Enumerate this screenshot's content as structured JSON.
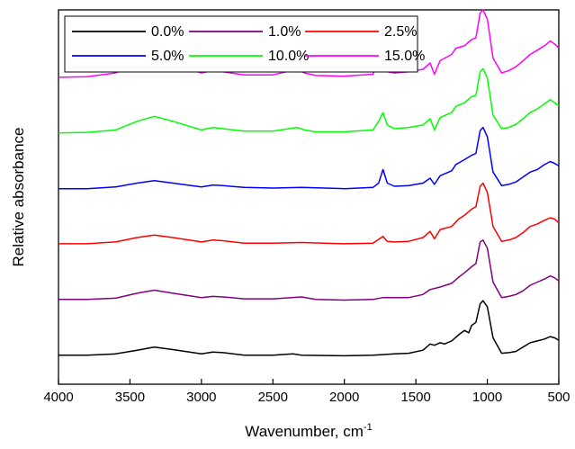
{
  "chart_data": {
    "type": "line",
    "title": "",
    "xlabel": "Wavenumber, cm",
    "xlabel_sup": "-1",
    "ylabel": "Relative absorbance",
    "xlim": [
      4000,
      500
    ],
    "x_reversed": true,
    "xticks": [
      4000,
      3500,
      3000,
      2500,
      2000,
      1500,
      1000,
      500
    ],
    "yticks": "none",
    "grid": false,
    "legend": {
      "position": "top",
      "columns": 3
    },
    "y_units": "arbitrary (stacked with vertical offsets)",
    "series": [
      {
        "name": "0.0%",
        "color": "#000000",
        "offset": 0.0,
        "points": [
          [
            4000,
            0.02
          ],
          [
            3800,
            0.02
          ],
          [
            3600,
            0.04
          ],
          [
            3450,
            0.1
          ],
          [
            3330,
            0.15
          ],
          [
            3200,
            0.11
          ],
          [
            3000,
            0.04
          ],
          [
            2920,
            0.07
          ],
          [
            2850,
            0.06
          ],
          [
            2700,
            0.02
          ],
          [
            2500,
            0.02
          ],
          [
            2360,
            0.04
          ],
          [
            2300,
            0.02
          ],
          [
            2000,
            0.01
          ],
          [
            1800,
            0.02
          ],
          [
            1720,
            0.03
          ],
          [
            1650,
            0.04
          ],
          [
            1550,
            0.05
          ],
          [
            1450,
            0.1
          ],
          [
            1400,
            0.2
          ],
          [
            1370,
            0.18
          ],
          [
            1330,
            0.22
          ],
          [
            1300,
            0.2
          ],
          [
            1250,
            0.25
          ],
          [
            1200,
            0.35
          ],
          [
            1160,
            0.42
          ],
          [
            1130,
            0.38
          ],
          [
            1110,
            0.5
          ],
          [
            1080,
            0.55
          ],
          [
            1050,
            0.85
          ],
          [
            1030,
            0.9
          ],
          [
            1000,
            0.8
          ],
          [
            960,
            0.3
          ],
          [
            900,
            0.05
          ],
          [
            850,
            0.06
          ],
          [
            800,
            0.08
          ],
          [
            750,
            0.15
          ],
          [
            700,
            0.22
          ],
          [
            650,
            0.25
          ],
          [
            600,
            0.28
          ],
          [
            560,
            0.32
          ],
          [
            530,
            0.3
          ],
          [
            500,
            0.26
          ]
        ]
      },
      {
        "name": "1.0%",
        "color": "#800080",
        "offset": 0.9,
        "points": [
          [
            4000,
            0.02
          ],
          [
            3800,
            0.02
          ],
          [
            3600,
            0.04
          ],
          [
            3450,
            0.12
          ],
          [
            3330,
            0.17
          ],
          [
            3200,
            0.12
          ],
          [
            3000,
            0.05
          ],
          [
            2920,
            0.07
          ],
          [
            2850,
            0.06
          ],
          [
            2700,
            0.03
          ],
          [
            2500,
            0.03
          ],
          [
            2300,
            0.06
          ],
          [
            2200,
            0.02
          ],
          [
            2000,
            0.01
          ],
          [
            1800,
            0.02
          ],
          [
            1730,
            0.05
          ],
          [
            1650,
            0.05
          ],
          [
            1550,
            0.05
          ],
          [
            1450,
            0.1
          ],
          [
            1400,
            0.18
          ],
          [
            1330,
            0.22
          ],
          [
            1250,
            0.28
          ],
          [
            1200,
            0.38
          ],
          [
            1160,
            0.45
          ],
          [
            1110,
            0.55
          ],
          [
            1080,
            0.6
          ],
          [
            1050,
            0.95
          ],
          [
            1030,
            0.98
          ],
          [
            1000,
            0.85
          ],
          [
            960,
            0.3
          ],
          [
            900,
            0.05
          ],
          [
            850,
            0.07
          ],
          [
            800,
            0.1
          ],
          [
            750,
            0.16
          ],
          [
            700,
            0.25
          ],
          [
            650,
            0.3
          ],
          [
            600,
            0.35
          ],
          [
            560,
            0.4
          ],
          [
            530,
            0.37
          ],
          [
            500,
            0.32
          ]
        ]
      },
      {
        "name": "2.5%",
        "color": "#ff0000",
        "offset": 1.8,
        "points": [
          [
            4000,
            0.02
          ],
          [
            3800,
            0.02
          ],
          [
            3600,
            0.05
          ],
          [
            3450,
            0.12
          ],
          [
            3330,
            0.16
          ],
          [
            3200,
            0.12
          ],
          [
            3000,
            0.05
          ],
          [
            2920,
            0.08
          ],
          [
            2850,
            0.07
          ],
          [
            2700,
            0.03
          ],
          [
            2500,
            0.03
          ],
          [
            2300,
            0.04
          ],
          [
            2000,
            0.02
          ],
          [
            1800,
            0.03
          ],
          [
            1730,
            0.14
          ],
          [
            1700,
            0.06
          ],
          [
            1650,
            0.05
          ],
          [
            1550,
            0.06
          ],
          [
            1450,
            0.12
          ],
          [
            1400,
            0.22
          ],
          [
            1370,
            0.1
          ],
          [
            1330,
            0.25
          ],
          [
            1250,
            0.3
          ],
          [
            1200,
            0.42
          ],
          [
            1160,
            0.48
          ],
          [
            1110,
            0.58
          ],
          [
            1080,
            0.62
          ],
          [
            1050,
            0.95
          ],
          [
            1030,
            1.0
          ],
          [
            1000,
            0.85
          ],
          [
            960,
            0.3
          ],
          [
            900,
            0.06
          ],
          [
            850,
            0.08
          ],
          [
            800,
            0.12
          ],
          [
            750,
            0.2
          ],
          [
            700,
            0.3
          ],
          [
            650,
            0.34
          ],
          [
            600,
            0.4
          ],
          [
            560,
            0.44
          ],
          [
            530,
            0.42
          ],
          [
            500,
            0.36
          ]
        ]
      },
      {
        "name": "5.0%",
        "color": "#0000ff",
        "offset": 2.7,
        "points": [
          [
            4000,
            0.01
          ],
          [
            3800,
            0.01
          ],
          [
            3600,
            0.04
          ],
          [
            3450,
            0.1
          ],
          [
            3330,
            0.14
          ],
          [
            3200,
            0.1
          ],
          [
            3000,
            0.04
          ],
          [
            2920,
            0.07
          ],
          [
            2850,
            0.06
          ],
          [
            2700,
            0.03
          ],
          [
            2500,
            0.02
          ],
          [
            2300,
            0.03
          ],
          [
            2000,
            0.01
          ],
          [
            1800,
            0.03
          ],
          [
            1760,
            0.1
          ],
          [
            1730,
            0.32
          ],
          [
            1700,
            0.1
          ],
          [
            1650,
            0.05
          ],
          [
            1550,
            0.06
          ],
          [
            1450,
            0.1
          ],
          [
            1400,
            0.18
          ],
          [
            1370,
            0.08
          ],
          [
            1330,
            0.22
          ],
          [
            1250,
            0.3
          ],
          [
            1220,
            0.4
          ],
          [
            1160,
            0.48
          ],
          [
            1110,
            0.55
          ],
          [
            1080,
            0.58
          ],
          [
            1050,
            0.95
          ],
          [
            1030,
            1.0
          ],
          [
            1000,
            0.85
          ],
          [
            960,
            0.28
          ],
          [
            900,
            0.06
          ],
          [
            850,
            0.08
          ],
          [
            800,
            0.12
          ],
          [
            750,
            0.2
          ],
          [
            700,
            0.28
          ],
          [
            650,
            0.32
          ],
          [
            600,
            0.4
          ],
          [
            560,
            0.45
          ],
          [
            530,
            0.42
          ],
          [
            500,
            0.38
          ]
        ]
      },
      {
        "name": "10.0%",
        "color": "#00ff00",
        "offset": 3.6,
        "points": [
          [
            4000,
            0.01
          ],
          [
            3800,
            0.02
          ],
          [
            3600,
            0.06
          ],
          [
            3450,
            0.2
          ],
          [
            3330,
            0.28
          ],
          [
            3200,
            0.2
          ],
          [
            3000,
            0.06
          ],
          [
            2920,
            0.1
          ],
          [
            2850,
            0.08
          ],
          [
            2700,
            0.04
          ],
          [
            2500,
            0.04
          ],
          [
            2330,
            0.1
          ],
          [
            2280,
            0.06
          ],
          [
            2200,
            0.03
          ],
          [
            2000,
            0.03
          ],
          [
            1800,
            0.06
          ],
          [
            1760,
            0.2
          ],
          [
            1730,
            0.34
          ],
          [
            1700,
            0.14
          ],
          [
            1650,
            0.08
          ],
          [
            1550,
            0.1
          ],
          [
            1450,
            0.14
          ],
          [
            1400,
            0.24
          ],
          [
            1370,
            0.06
          ],
          [
            1330,
            0.26
          ],
          [
            1250,
            0.34
          ],
          [
            1220,
            0.44
          ],
          [
            1160,
            0.5
          ],
          [
            1110,
            0.6
          ],
          [
            1080,
            0.62
          ],
          [
            1050,
            1.0
          ],
          [
            1030,
            1.05
          ],
          [
            1000,
            0.9
          ],
          [
            960,
            0.3
          ],
          [
            900,
            0.08
          ],
          [
            850,
            0.1
          ],
          [
            800,
            0.15
          ],
          [
            750,
            0.24
          ],
          [
            700,
            0.34
          ],
          [
            650,
            0.4
          ],
          [
            600,
            0.48
          ],
          [
            560,
            0.55
          ],
          [
            530,
            0.5
          ],
          [
            500,
            0.45
          ]
        ]
      },
      {
        "name": "15.0%",
        "color": "#ff00ff",
        "offset": 4.5,
        "points": [
          [
            4000,
            0.01
          ],
          [
            3800,
            0.02
          ],
          [
            3600,
            0.08
          ],
          [
            3450,
            0.22
          ],
          [
            3330,
            0.3
          ],
          [
            3200,
            0.22
          ],
          [
            3000,
            0.08
          ],
          [
            2920,
            0.12
          ],
          [
            2850,
            0.1
          ],
          [
            2700,
            0.05
          ],
          [
            2500,
            0.05
          ],
          [
            2330,
            0.14
          ],
          [
            2280,
            0.08
          ],
          [
            2200,
            0.04
          ],
          [
            2000,
            0.03
          ],
          [
            1800,
            0.06
          ],
          [
            1760,
            0.35
          ],
          [
            1730,
            0.14
          ],
          [
            1700,
            0.1
          ],
          [
            1650,
            0.08
          ],
          [
            1550,
            0.1
          ],
          [
            1450,
            0.14
          ],
          [
            1400,
            0.24
          ],
          [
            1370,
            0.06
          ],
          [
            1330,
            0.28
          ],
          [
            1250,
            0.38
          ],
          [
            1220,
            0.48
          ],
          [
            1160,
            0.52
          ],
          [
            1110,
            0.62
          ],
          [
            1080,
            0.65
          ],
          [
            1050,
            1.05
          ],
          [
            1030,
            1.1
          ],
          [
            1000,
            0.95
          ],
          [
            960,
            0.32
          ],
          [
            900,
            0.08
          ],
          [
            850,
            0.12
          ],
          [
            800,
            0.18
          ],
          [
            750,
            0.28
          ],
          [
            700,
            0.38
          ],
          [
            650,
            0.45
          ],
          [
            600,
            0.52
          ],
          [
            560,
            0.6
          ],
          [
            530,
            0.55
          ],
          [
            500,
            0.48
          ]
        ]
      }
    ]
  }
}
